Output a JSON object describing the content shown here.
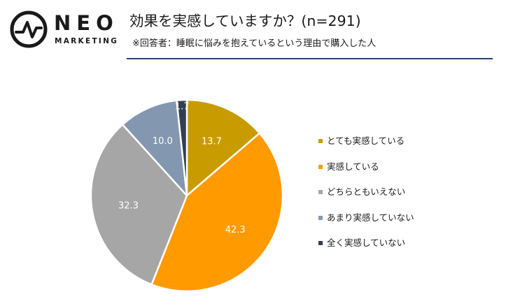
{
  "brand": {
    "name": "NEO",
    "sub": "MARKETING",
    "icon": "pulse-circle-icon"
  },
  "title": "効果を実感していますか？(n=291)",
  "subtitle": "※回答者：睡眠に悩みを抱えているという理由で購入した人",
  "colors": {
    "rule": "#2e3e72",
    "label_on_slice": "#ffffff"
  },
  "chart_data": {
    "type": "pie",
    "start_angle_deg": 0,
    "direction": "clockwise",
    "legend_position": "right",
    "slices": [
      {
        "label": "とても実感している",
        "value": 13.7,
        "color": "#c89b00"
      },
      {
        "label": "実感している",
        "value": 42.3,
        "color": "#ff9a00"
      },
      {
        "label": "どちらともいえない",
        "value": 32.3,
        "color": "#a6a6a6"
      },
      {
        "label": "あまり実感していない",
        "value": 10.0,
        "color": "#8497b0"
      },
      {
        "label": "全く実感していない",
        "value": 1.7,
        "color": "#333f50"
      }
    ]
  }
}
